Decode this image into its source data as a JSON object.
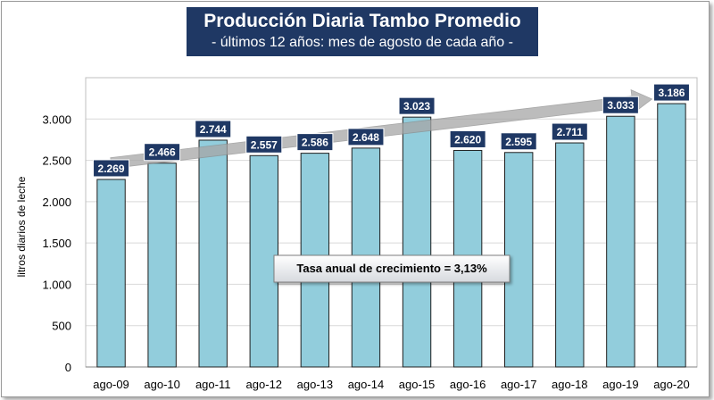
{
  "chart_data": {
    "type": "bar",
    "title": "Producción Diaria Tambo Promedio",
    "subtitle": "- últimos 12 años: mes de agosto de cada año -",
    "ylabel": "litros diarios de leche",
    "xlabel": "",
    "categories": [
      "ago-09",
      "ago-10",
      "ago-11",
      "ago-12",
      "ago-13",
      "ago-14",
      "ago-15",
      "ago-16",
      "ago-17",
      "ago-18",
      "ago-19",
      "ago-20"
    ],
    "values": [
      2269,
      2466,
      2744,
      2557,
      2586,
      2648,
      3023,
      2620,
      2595,
      2711,
      3033,
      3186
    ],
    "value_labels": [
      "2.269",
      "2.466",
      "2.744",
      "2.557",
      "2.586",
      "2.648",
      "3.023",
      "2.620",
      "2.595",
      "2.711",
      "3.033",
      "3.186"
    ],
    "ylim": [
      0,
      3500
    ],
    "yticks": [
      0,
      500,
      1000,
      1500,
      2000,
      2500,
      3000
    ],
    "ytick_labels": [
      "0",
      "500",
      "1.000",
      "1.500",
      "2.000",
      "2.500",
      "3.000"
    ],
    "grid": true,
    "legend": "none",
    "trend_arrow": true,
    "annotation": "Tasa anual de crecimiento = 3,13%",
    "colors": {
      "bar": "#92cddc",
      "bar_edge": "#1f1f1f",
      "label_bg": "#1f3864",
      "title_bg": "#1f3864",
      "arrow": "#a6a6a6",
      "grid": "#d9d9d9"
    }
  }
}
